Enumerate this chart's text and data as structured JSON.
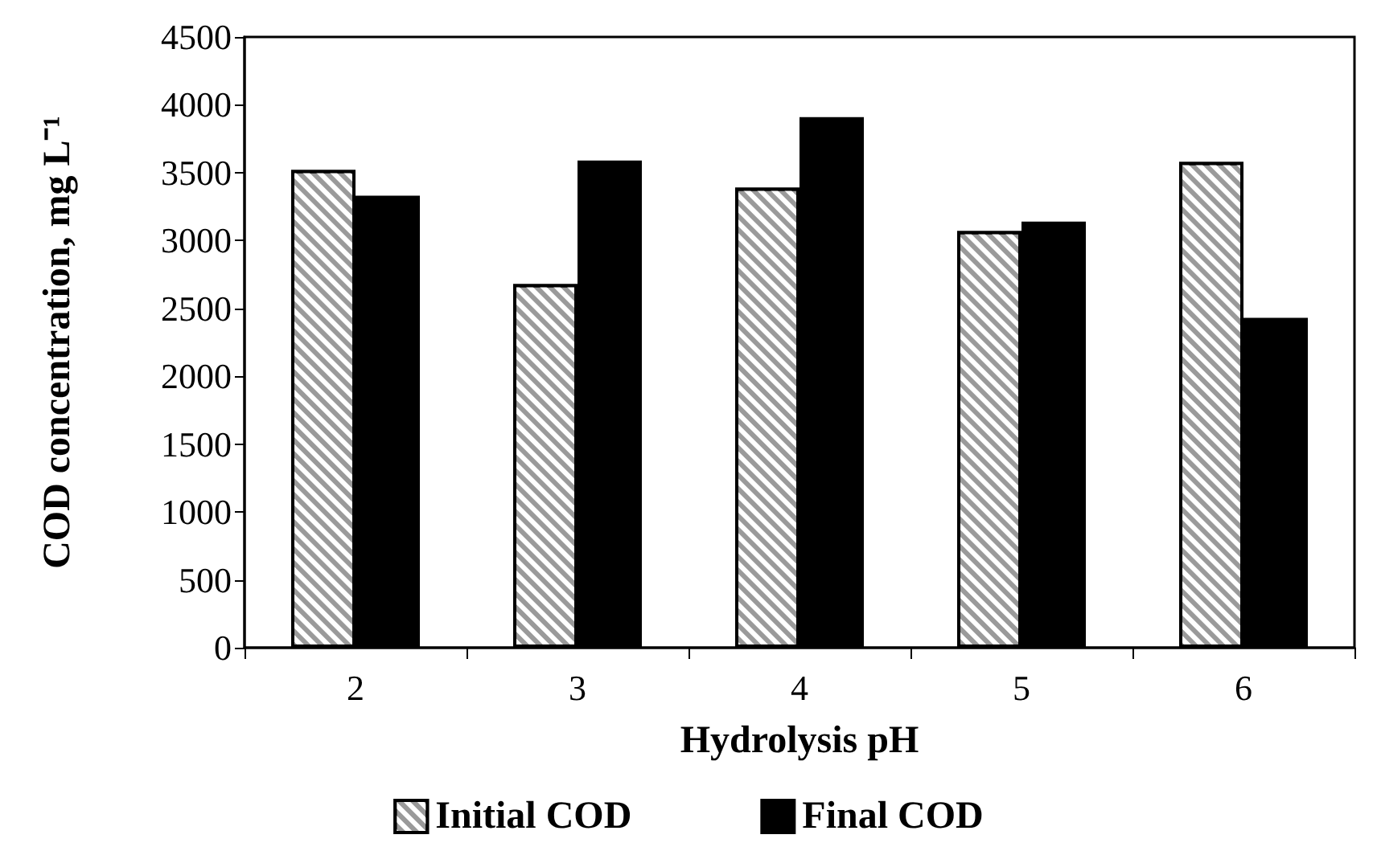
{
  "chart_data": {
    "type": "bar",
    "xlabel": "Hydrolysis pH",
    "ylabel": "COD concentration, mg L⁻¹",
    "categories": [
      "2",
      "3",
      "4",
      "5",
      "6"
    ],
    "series": [
      {
        "name": "Initial COD",
        "color": "#9a9a9a",
        "values": [
          3520,
          2680,
          3390,
          3070,
          3580
        ]
      },
      {
        "name": "Final COD",
        "color": "#000000",
        "values": [
          3330,
          3590,
          3910,
          3140,
          2430
        ]
      }
    ],
    "ylim": [
      0,
      4500
    ],
    "yticks": [
      0,
      500,
      1000,
      1500,
      2000,
      2500,
      3000,
      3500,
      4000,
      4500
    ],
    "grid": false,
    "legend": "bottom"
  }
}
